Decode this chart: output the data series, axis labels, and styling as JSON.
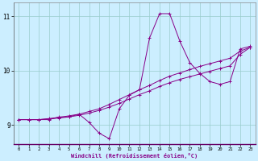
{
  "xlabel": "Windchill (Refroidissement éolien,°C)",
  "background_color": "#cceeff",
  "line_color": "#880088",
  "grid_color": "#99cccc",
  "hours": [
    0,
    1,
    2,
    3,
    4,
    5,
    6,
    7,
    8,
    9,
    10,
    11,
    12,
    13,
    14,
    15,
    16,
    17,
    18,
    19,
    20,
    21,
    22,
    23
  ],
  "line1": [
    9.1,
    9.1,
    9.1,
    9.1,
    9.15,
    9.15,
    9.2,
    9.05,
    8.85,
    8.75,
    9.3,
    9.55,
    9.65,
    10.6,
    11.05,
    11.05,
    10.55,
    10.15,
    9.95,
    9.8,
    9.75,
    9.8,
    10.4,
    10.45
  ],
  "line2": [
    9.1,
    9.1,
    9.1,
    9.12,
    9.14,
    9.17,
    9.2,
    9.25,
    9.3,
    9.38,
    9.47,
    9.56,
    9.65,
    9.73,
    9.82,
    9.9,
    9.96,
    10.02,
    10.08,
    10.13,
    10.18,
    10.23,
    10.36,
    10.43
  ],
  "line3": [
    9.1,
    9.1,
    9.1,
    9.11,
    9.13,
    9.15,
    9.18,
    9.22,
    9.27,
    9.33,
    9.4,
    9.48,
    9.56,
    9.63,
    9.71,
    9.78,
    9.84,
    9.89,
    9.94,
    9.99,
    10.04,
    10.09,
    10.3,
    10.43
  ],
  "ylim": [
    8.65,
    11.25
  ],
  "yticks": [
    9,
    10,
    11
  ],
  "xticks": [
    0,
    1,
    2,
    3,
    4,
    5,
    6,
    7,
    8,
    9,
    10,
    11,
    12,
    13,
    14,
    15,
    16,
    17,
    18,
    19,
    20,
    21,
    22,
    23
  ],
  "figsize": [
    3.2,
    2.0
  ],
  "dpi": 100
}
